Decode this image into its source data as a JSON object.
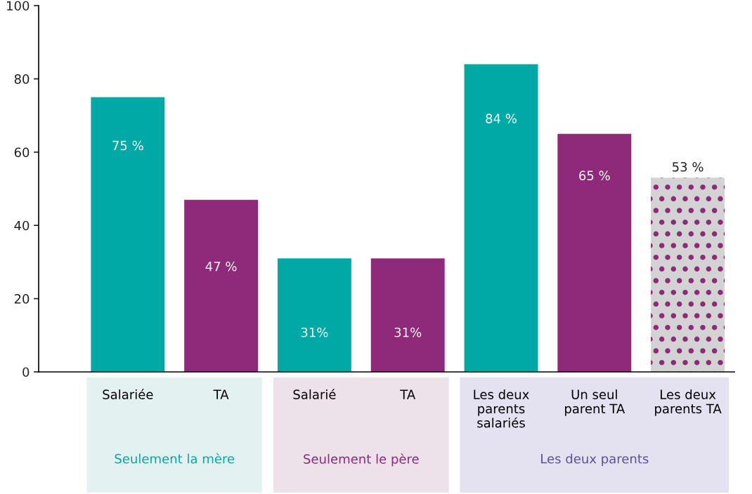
{
  "chart_data": {
    "type": "bar",
    "categories": [
      "Salariée",
      "TA",
      "Salarié",
      "TA",
      "Les deux\nparents\nsalariés",
      "Un seul\nparent TA",
      "Les deux\nparents TA"
    ],
    "values": [
      75,
      47,
      31,
      31,
      84,
      65,
      53
    ],
    "colors": [
      "#00a9a5",
      "#8e2a79",
      "#00a9a5",
      "#8e2a79",
      "#00a9a5",
      "#8e2a79",
      "#d3d3d3"
    ],
    "value_labels": [
      "75 %",
      "47 %",
      "31%",
      "31%",
      "84 %",
      "65 %",
      "53 %"
    ],
    "ylim": [
      0,
      100
    ],
    "yticks": [
      0,
      20,
      40,
      60,
      80,
      100
    ],
    "grid": false,
    "legend": false,
    "annotations": [
      "Seulement la mère",
      "Seulement le père",
      "Les deux parents"
    ]
  }
}
